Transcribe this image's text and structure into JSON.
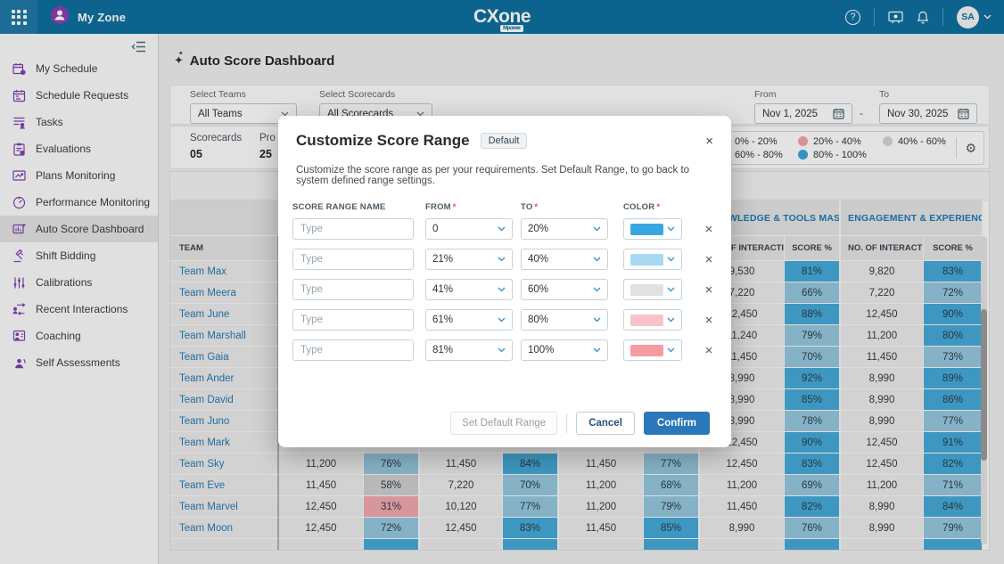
{
  "icons": {
    "gear": "⚙",
    "sparkle": "✦",
    "close": "×",
    "help": "?"
  },
  "topbar": {
    "product": "My Zone",
    "logo_main": "CX",
    "logo_one": "one",
    "logo_sub": "Mpower",
    "avatar": "SA"
  },
  "sidebar": {
    "items": [
      {
        "label": "My Schedule",
        "icon": "my-schedule",
        "active": false
      },
      {
        "label": "Schedule Requests",
        "icon": "schedule-requests",
        "active": false
      },
      {
        "label": "Tasks",
        "icon": "tasks",
        "active": false
      },
      {
        "label": "Evaluations",
        "icon": "evaluations",
        "active": false
      },
      {
        "label": "Plans Monitoring",
        "icon": "plans-monitoring",
        "active": false
      },
      {
        "label": "Performance Monitoring",
        "icon": "performance-monitoring",
        "active": false
      },
      {
        "label": "Auto Score Dashboard",
        "icon": "auto-score-dashboard",
        "active": true
      },
      {
        "label": "Shift Bidding",
        "icon": "shift-bidding",
        "active": false
      },
      {
        "label": "Calibrations",
        "icon": "calibrations",
        "active": false
      },
      {
        "label": "Recent Interactions",
        "icon": "recent-interactions",
        "active": false
      },
      {
        "label": "Coaching",
        "icon": "coaching",
        "active": false
      },
      {
        "label": "Self Assessments",
        "icon": "self-assessments",
        "active": false
      }
    ]
  },
  "page": {
    "title": "Auto Score Dashboard"
  },
  "filters": {
    "teams_label": "Select Teams",
    "teams_value": "All Teams",
    "scorecards_label": "Select Scorecards",
    "scorecards_value": "All Scorecards",
    "from_label": "From",
    "from_value": "Nov 1, 2025",
    "range_sep": "-",
    "to_label": "To",
    "to_value": "Nov 30, 2025"
  },
  "summary": {
    "items": [
      {
        "label": "Scorecards",
        "value": "05"
      },
      {
        "label": "Pro",
        "value": "25"
      }
    ]
  },
  "legend": {
    "items": [
      {
        "label": "0% - 20%",
        "color": "#df5a62"
      },
      {
        "label": "20% - 40%",
        "color": "#f2a3ab"
      },
      {
        "label": "40% - 60%",
        "color": "#d4d4d4"
      },
      {
        "label": "60% - 80%",
        "color": "#96cbe4"
      },
      {
        "label": "80% - 100%",
        "color": "#37a4da"
      }
    ]
  },
  "table": {
    "team_header": "TEAM",
    "groups": [
      {
        "title": ""
      },
      {
        "title": ""
      },
      {
        "title": ""
      },
      {
        "title": "KNOWLEDGE & TOOLS MASTERY..."
      },
      {
        "title": "ENGAGEMENT & EXPERIENCE"
      }
    ],
    "sub_value_header": "NO. OF INTERACTI...",
    "sub_score_header": "SCORE %",
    "score_colors": {
      "high": "#46a9d6",
      "mid": "#95c7de",
      "low": "#cfcfcf",
      "poor": "#f0a7ad"
    },
    "rows": [
      {
        "team": "Team Max",
        "cells": [
          [
            "",
            ""
          ],
          [
            "",
            ""
          ],
          [
            "",
            ""
          ],
          [
            "9,530",
            "81%"
          ],
          [
            "9,820",
            "83%"
          ]
        ]
      },
      {
        "team": "Team Meera",
        "cells": [
          [
            "",
            ""
          ],
          [
            "",
            ""
          ],
          [
            "",
            ""
          ],
          [
            "7,220",
            "66%"
          ],
          [
            "7,220",
            "72%"
          ]
        ]
      },
      {
        "team": "Team June",
        "cells": [
          [
            "",
            ""
          ],
          [
            "",
            ""
          ],
          [
            "",
            ""
          ],
          [
            "12,450",
            "88%"
          ],
          [
            "12,450",
            "90%"
          ]
        ]
      },
      {
        "team": "Team Marshall",
        "cells": [
          [
            "",
            ""
          ],
          [
            "",
            ""
          ],
          [
            "",
            ""
          ],
          [
            "11,240",
            "79%"
          ],
          [
            "11,200",
            "80%"
          ]
        ]
      },
      {
        "team": "Team Gaia",
        "cells": [
          [
            "",
            ""
          ],
          [
            "",
            ""
          ],
          [
            "",
            ""
          ],
          [
            "11,450",
            "70%"
          ],
          [
            "11,450",
            "73%"
          ]
        ]
      },
      {
        "team": "Team Ander",
        "cells": [
          [
            "",
            ""
          ],
          [
            "",
            ""
          ],
          [
            "",
            ""
          ],
          [
            "8,990",
            "92%"
          ],
          [
            "8,990",
            "89%"
          ]
        ]
      },
      {
        "team": "Team David",
        "cells": [
          [
            "",
            ""
          ],
          [
            "",
            ""
          ],
          [
            "",
            ""
          ],
          [
            "8,990",
            "85%"
          ],
          [
            "8,990",
            "86%"
          ]
        ]
      },
      {
        "team": "Team Juno",
        "cells": [
          [
            "",
            ""
          ],
          [
            "",
            ""
          ],
          [
            "",
            ""
          ],
          [
            "8,990",
            "78%"
          ],
          [
            "8,990",
            "77%"
          ]
        ]
      },
      {
        "team": "Team Mark",
        "cells": [
          [
            "",
            ""
          ],
          [
            "",
            ""
          ],
          [
            "",
            ""
          ],
          [
            "12,450",
            "90%"
          ],
          [
            "12,450",
            "91%"
          ]
        ]
      },
      {
        "team": "Team Sky",
        "cells": [
          [
            "11,200",
            "76%"
          ],
          [
            "11,450",
            "84%"
          ],
          [
            "11,450",
            "77%"
          ],
          [
            "12,450",
            "83%"
          ],
          [
            "12,450",
            "82%"
          ]
        ]
      },
      {
        "team": "Team Eve",
        "cells": [
          [
            "11,450",
            "58%"
          ],
          [
            "7,220",
            "70%"
          ],
          [
            "11,200",
            "68%"
          ],
          [
            "11,200",
            "69%"
          ],
          [
            "11,200",
            "71%"
          ]
        ]
      },
      {
        "team": "Team Marvel",
        "cells": [
          [
            "12,450",
            "31%"
          ],
          [
            "10,120",
            "77%"
          ],
          [
            "11,200",
            "79%"
          ],
          [
            "11,450",
            "82%"
          ],
          [
            "8,990",
            "84%"
          ]
        ]
      },
      {
        "team": "Team Moon",
        "cells": [
          [
            "12,450",
            "72%"
          ],
          [
            "12,450",
            "83%"
          ],
          [
            "11,450",
            "85%"
          ],
          [
            "8,990",
            "76%"
          ],
          [
            "8,990",
            "79%"
          ]
        ]
      }
    ]
  },
  "modal": {
    "title": "Customize Score Range",
    "badge": "Default",
    "description": "Customize the score range as per your requirements. Set Default Range, to go back to system defined range settings.",
    "columns": {
      "name": "SCORE RANGE NAME",
      "from": "FROM",
      "to": "TO",
      "color": "COLOR",
      "req": "*"
    },
    "name_placeholder": "Type",
    "rows": [
      {
        "from": "0",
        "to": "20%",
        "color": "#3aa8e0"
      },
      {
        "from": "21%",
        "to": "40%",
        "color": "#a6d9f1"
      },
      {
        "from": "41%",
        "to": "60%",
        "color": "#e1e1e1"
      },
      {
        "from": "61%",
        "to": "80%",
        "color": "#f9c4c9"
      },
      {
        "from": "81%",
        "to": "100%",
        "color": "#f79ba3"
      }
    ],
    "buttons": {
      "set_default": "Set Default Range",
      "cancel": "Cancel",
      "confirm": "Confirm"
    }
  }
}
